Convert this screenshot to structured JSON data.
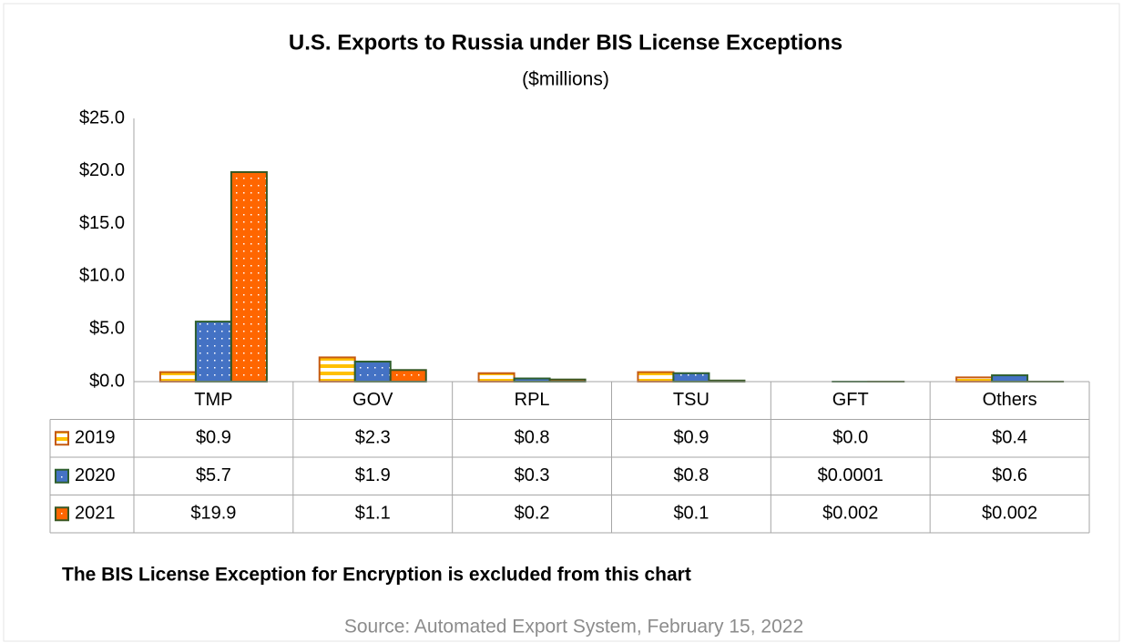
{
  "chart_data": {
    "type": "bar",
    "title": "U.S. Exports to Russia under BIS License Exceptions",
    "subtitle": "($millions)",
    "categories": [
      "TMP",
      "GOV",
      "RPL",
      "TSU",
      "GFT",
      "Others"
    ],
    "series": [
      {
        "name": "2019",
        "color": "#ffc000",
        "values": [
          0.9,
          2.3,
          0.8,
          0.9,
          0.0,
          0.4
        ],
        "value_labels": [
          "$0.9",
          "$2.3",
          "$0.8",
          "$0.9",
          "$0.0",
          "$0.4"
        ]
      },
      {
        "name": "2020",
        "color": "#4472c4",
        "values": [
          5.7,
          1.9,
          0.3,
          0.8,
          0.0001,
          0.6
        ],
        "value_labels": [
          "$5.7",
          "$1.9",
          "$0.3",
          "$0.8",
          "$0.0001",
          "$0.6"
        ]
      },
      {
        "name": "2021",
        "color": "#ff6600",
        "values": [
          19.9,
          1.1,
          0.2,
          0.1,
          0.002,
          0.002
        ],
        "value_labels": [
          "$19.9",
          "$1.1",
          "$0.2",
          "$0.1",
          "$0.002",
          "$0.002"
        ]
      }
    ],
    "ylim": [
      0,
      25
    ],
    "yticks": [
      {
        "value": 0,
        "label": "$0.0"
      },
      {
        "value": 5,
        "label": "$5.0"
      },
      {
        "value": 10,
        "label": "$10.0"
      },
      {
        "value": 15,
        "label": "$15.0"
      },
      {
        "value": 20,
        "label": "$20.0"
      },
      {
        "value": 25,
        "label": "$25.0"
      }
    ],
    "grid": false,
    "note": "The BIS License Exception for Encryption is excluded from this chart",
    "source": "Source: Automated Export System, February 15, 2022"
  }
}
